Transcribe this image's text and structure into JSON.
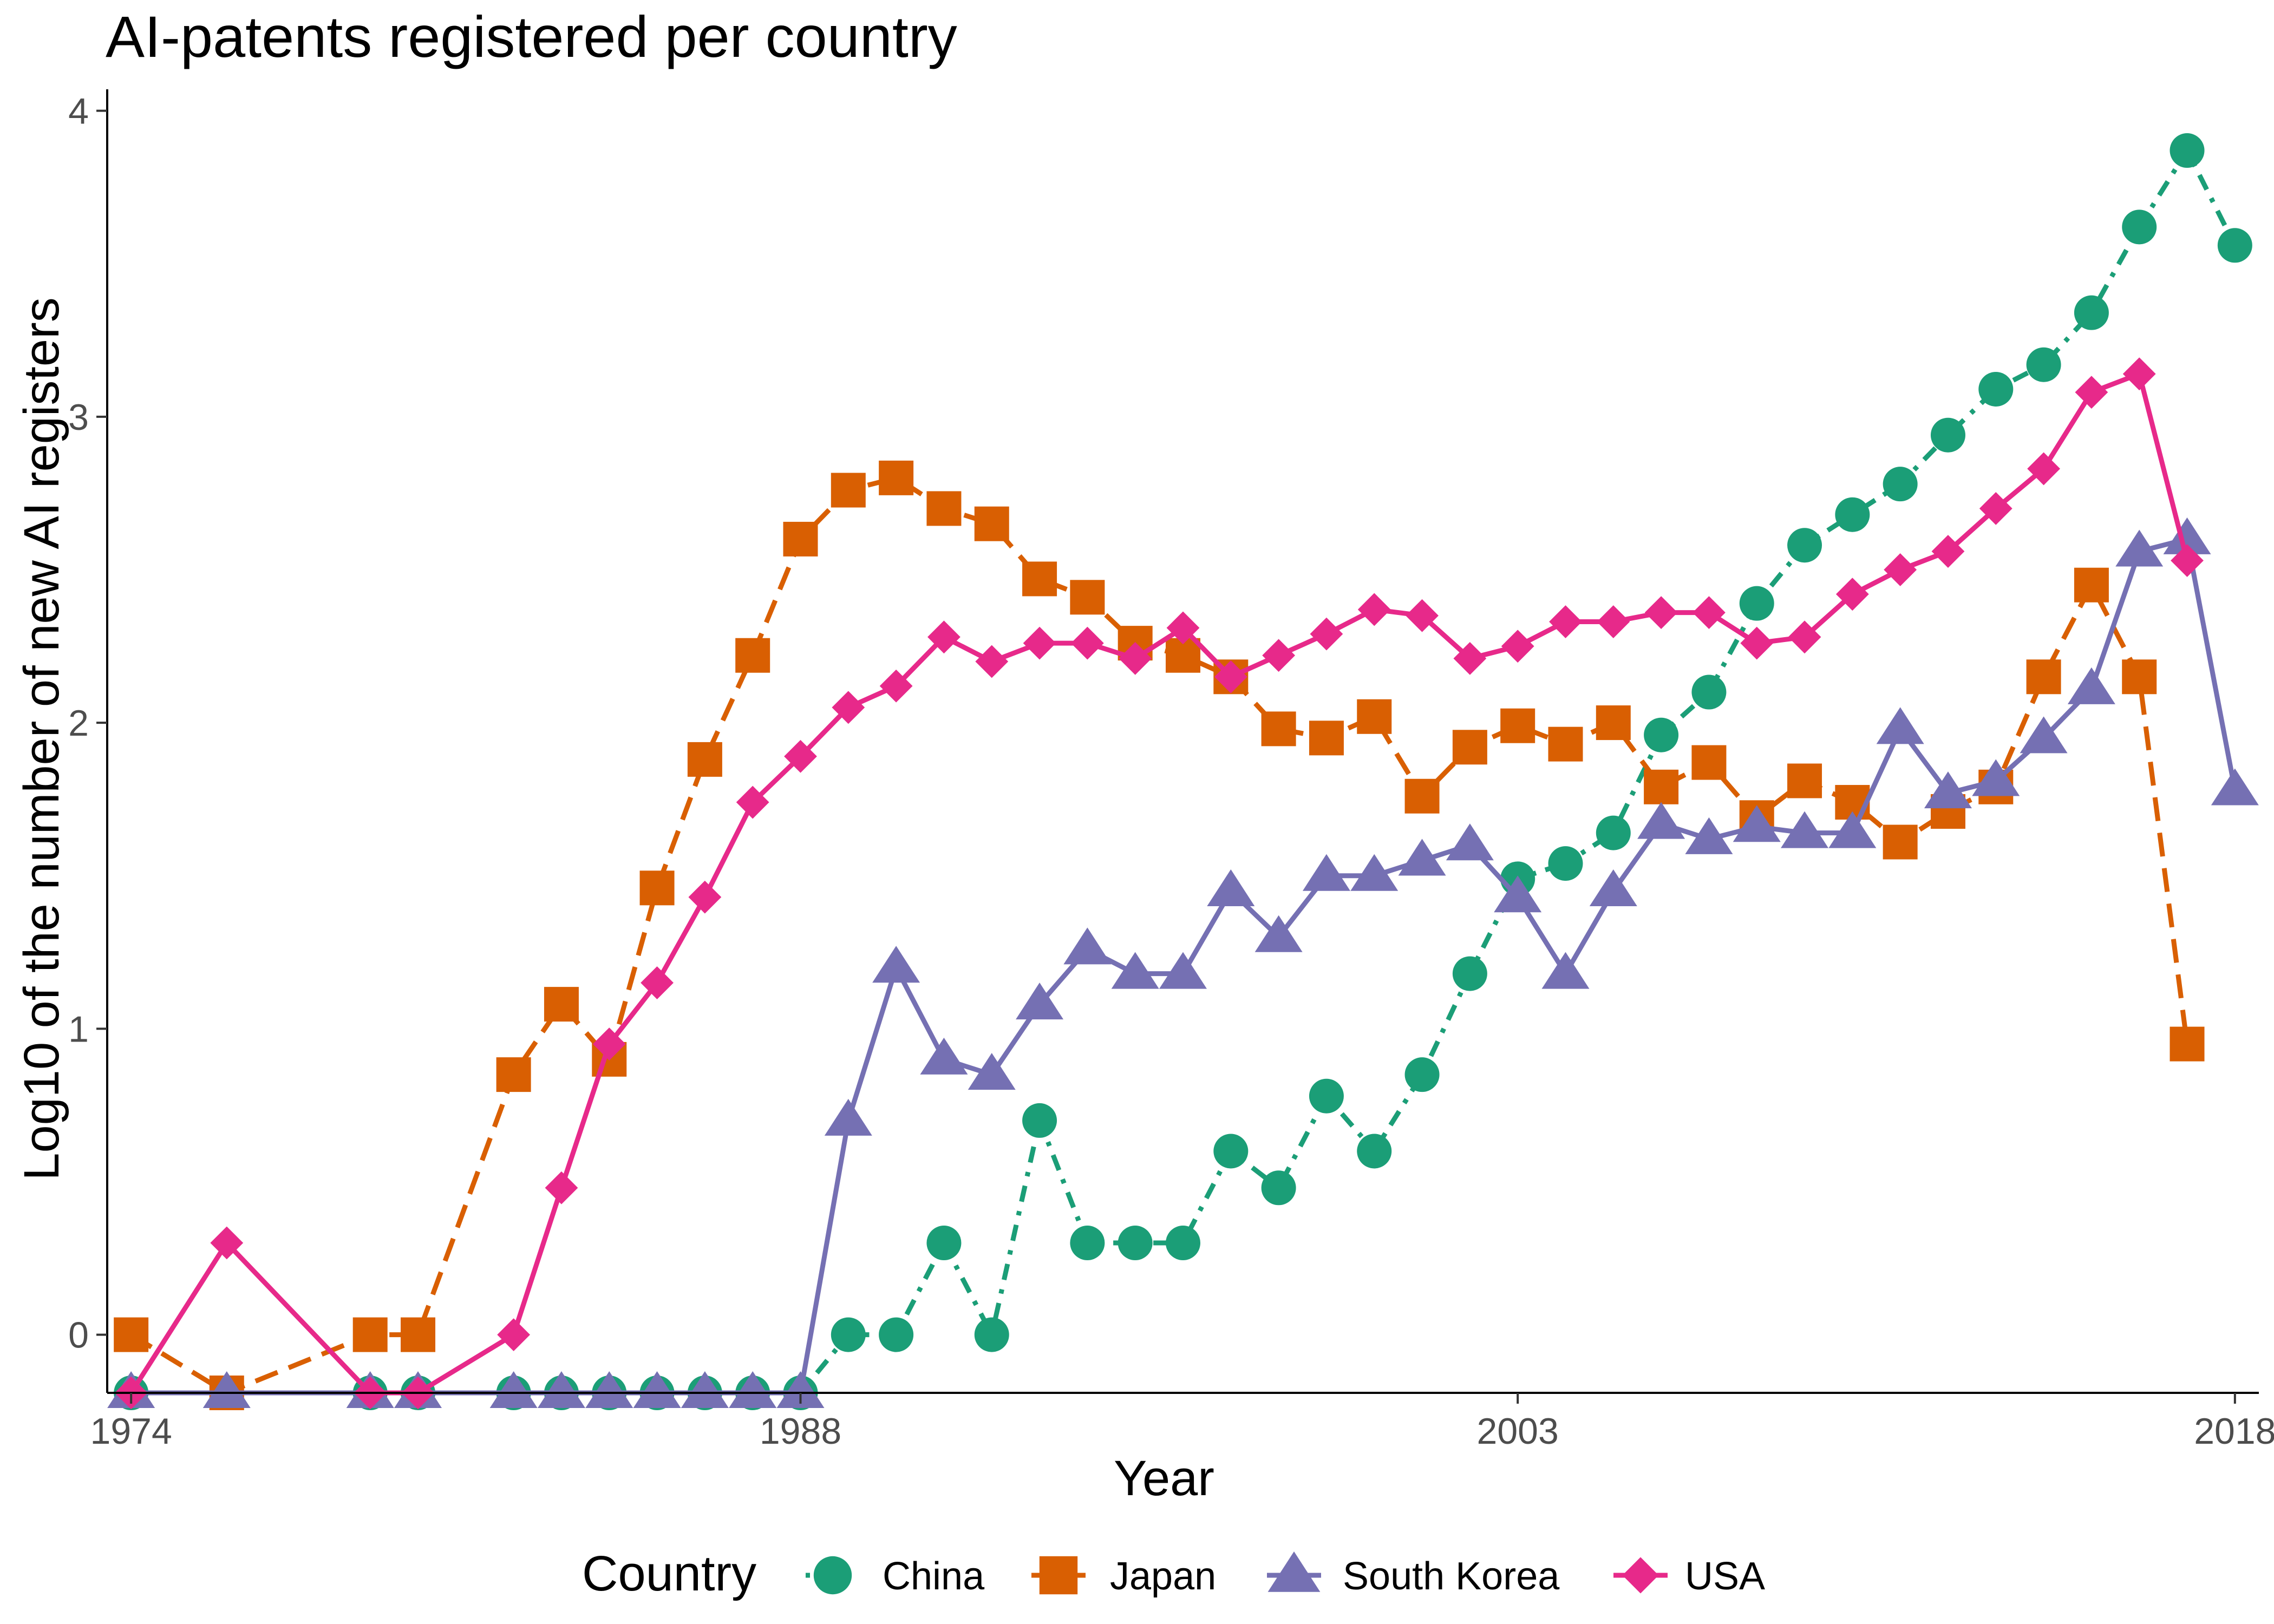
{
  "chart_data": {
    "type": "line",
    "title": "AI-patents registered per country",
    "xlabel": "Year",
    "ylabel": "Log10 of the number of new AI registers",
    "xlim": [
      1973.5,
      2018.5
    ],
    "ylim": [
      -0.19,
      4.07
    ],
    "x_ticks": [
      1974,
      1988,
      2003,
      2018
    ],
    "y_ticks": [
      0,
      1,
      2,
      3,
      4
    ],
    "grid": false,
    "legend": {
      "title": "Country",
      "position": "bottom"
    },
    "series": [
      {
        "name": "China",
        "color": "#1b9e77",
        "marker": "circle",
        "line": "dotdash",
        "points": [
          [
            1974,
            -0.19
          ],
          [
            1976,
            -0.19
          ],
          [
            1979,
            -0.19
          ],
          [
            1980,
            -0.19
          ],
          [
            1982,
            -0.19
          ],
          [
            1983,
            -0.19
          ],
          [
            1984,
            -0.19
          ],
          [
            1985,
            -0.19
          ],
          [
            1986,
            -0.19
          ],
          [
            1987,
            -0.19
          ],
          [
            1988,
            -0.19
          ],
          [
            1989,
            0.0
          ],
          [
            1990,
            0.0
          ],
          [
            1991,
            0.3
          ],
          [
            1992,
            0.0
          ],
          [
            1993,
            0.7
          ],
          [
            1994,
            0.3
          ],
          [
            1995,
            0.3
          ],
          [
            1996,
            0.3
          ],
          [
            1997,
            0.6
          ],
          [
            1998,
            0.48
          ],
          [
            1999,
            0.78
          ],
          [
            2000,
            0.6
          ],
          [
            2001,
            0.85
          ],
          [
            2002,
            1.18
          ],
          [
            2003,
            1.49
          ],
          [
            2004,
            1.54
          ],
          [
            2005,
            1.64
          ],
          [
            2006,
            1.96
          ],
          [
            2007,
            2.1
          ],
          [
            2008,
            2.39
          ],
          [
            2009,
            2.58
          ],
          [
            2010,
            2.68
          ],
          [
            2011,
            2.78
          ],
          [
            2012,
            2.94
          ],
          [
            2013,
            3.09
          ],
          [
            2014,
            3.17
          ],
          [
            2015,
            3.34
          ],
          [
            2016,
            3.62
          ],
          [
            2017,
            3.87
          ],
          [
            2018,
            3.56
          ]
        ]
      },
      {
        "name": "Japan",
        "color": "#d95f02",
        "marker": "square",
        "line": "dashed",
        "points": [
          [
            1974,
            0.0
          ],
          [
            1976,
            -0.19
          ],
          [
            1979,
            0.0
          ],
          [
            1980,
            0.0
          ],
          [
            1982,
            0.85
          ],
          [
            1983,
            1.08
          ],
          [
            1984,
            0.9
          ],
          [
            1985,
            1.46
          ],
          [
            1986,
            1.88
          ],
          [
            1987,
            2.22
          ],
          [
            1988,
            2.6
          ],
          [
            1989,
            2.76
          ],
          [
            1990,
            2.8
          ],
          [
            1991,
            2.7
          ],
          [
            1992,
            2.65
          ],
          [
            1993,
            2.47
          ],
          [
            1994,
            2.41
          ],
          [
            1995,
            2.26
          ],
          [
            1996,
            2.22
          ],
          [
            1997,
            2.15
          ],
          [
            1998,
            1.98
          ],
          [
            1999,
            1.95
          ],
          [
            2000,
            2.02
          ],
          [
            2001,
            1.76
          ],
          [
            2002,
            1.92
          ],
          [
            2003,
            1.99
          ],
          [
            2004,
            1.93
          ],
          [
            2005,
            2.0
          ],
          [
            2006,
            1.79
          ],
          [
            2007,
            1.87
          ],
          [
            2008,
            1.69
          ],
          [
            2009,
            1.81
          ],
          [
            2010,
            1.74
          ],
          [
            2011,
            1.61
          ],
          [
            2012,
            1.71
          ],
          [
            2013,
            1.79
          ],
          [
            2014,
            2.15
          ],
          [
            2015,
            2.45
          ],
          [
            2016,
            2.15
          ],
          [
            2017,
            0.95
          ]
        ]
      },
      {
        "name": "South Korea",
        "color": "#7570b3",
        "marker": "triangle",
        "line": "solid",
        "points": [
          [
            1974,
            -0.19
          ],
          [
            1976,
            -0.19
          ],
          [
            1979,
            -0.19
          ],
          [
            1980,
            -0.19
          ],
          [
            1982,
            -0.19
          ],
          [
            1983,
            -0.19
          ],
          [
            1984,
            -0.19
          ],
          [
            1985,
            -0.19
          ],
          [
            1986,
            -0.19
          ],
          [
            1987,
            -0.19
          ],
          [
            1988,
            -0.19
          ],
          [
            1989,
            0.7
          ],
          [
            1990,
            1.2
          ],
          [
            1991,
            0.9
          ],
          [
            1992,
            0.85
          ],
          [
            1993,
            1.08
          ],
          [
            1994,
            1.26
          ],
          [
            1995,
            1.18
          ],
          [
            1996,
            1.18
          ],
          [
            1997,
            1.45
          ],
          [
            1998,
            1.3
          ],
          [
            1999,
            1.5
          ],
          [
            2000,
            1.5
          ],
          [
            2001,
            1.55
          ],
          [
            2002,
            1.6
          ],
          [
            2003,
            1.43
          ],
          [
            2004,
            1.18
          ],
          [
            2005,
            1.45
          ],
          [
            2006,
            1.67
          ],
          [
            2007,
            1.62
          ],
          [
            2008,
            1.66
          ],
          [
            2009,
            1.64
          ],
          [
            2010,
            1.64
          ],
          [
            2011,
            1.98
          ],
          [
            2012,
            1.77
          ],
          [
            2013,
            1.81
          ],
          [
            2014,
            1.95
          ],
          [
            2015,
            2.11
          ],
          [
            2016,
            2.56
          ],
          [
            2017,
            2.6
          ],
          [
            2018,
            1.78
          ]
        ]
      },
      {
        "name": "USA",
        "color": "#e7298a",
        "marker": "diamond",
        "line": "solid",
        "points": [
          [
            1974,
            -0.19
          ],
          [
            1976,
            0.3
          ],
          [
            1979,
            -0.19
          ],
          [
            1980,
            -0.19
          ],
          [
            1982,
            0.0
          ],
          [
            1983,
            0.48
          ],
          [
            1984,
            0.95
          ],
          [
            1985,
            1.15
          ],
          [
            1986,
            1.43
          ],
          [
            1987,
            1.74
          ],
          [
            1988,
            1.89
          ],
          [
            1989,
            2.05
          ],
          [
            1990,
            2.12
          ],
          [
            1991,
            2.28
          ],
          [
            1992,
            2.2
          ],
          [
            1993,
            2.26
          ],
          [
            1994,
            2.26
          ],
          [
            1995,
            2.21
          ],
          [
            1996,
            2.31
          ],
          [
            1997,
            2.15
          ],
          [
            1998,
            2.22
          ],
          [
            1999,
            2.29
          ],
          [
            2000,
            2.37
          ],
          [
            2001,
            2.35
          ],
          [
            2002,
            2.21
          ],
          [
            2003,
            2.25
          ],
          [
            2004,
            2.33
          ],
          [
            2005,
            2.33
          ],
          [
            2006,
            2.36
          ],
          [
            2007,
            2.36
          ],
          [
            2008,
            2.26
          ],
          [
            2009,
            2.28
          ],
          [
            2010,
            2.42
          ],
          [
            2011,
            2.5
          ],
          [
            2012,
            2.56
          ],
          [
            2013,
            2.7
          ],
          [
            2014,
            2.83
          ],
          [
            2015,
            3.08
          ],
          [
            2016,
            3.14
          ],
          [
            2017,
            2.53
          ]
        ]
      }
    ]
  }
}
